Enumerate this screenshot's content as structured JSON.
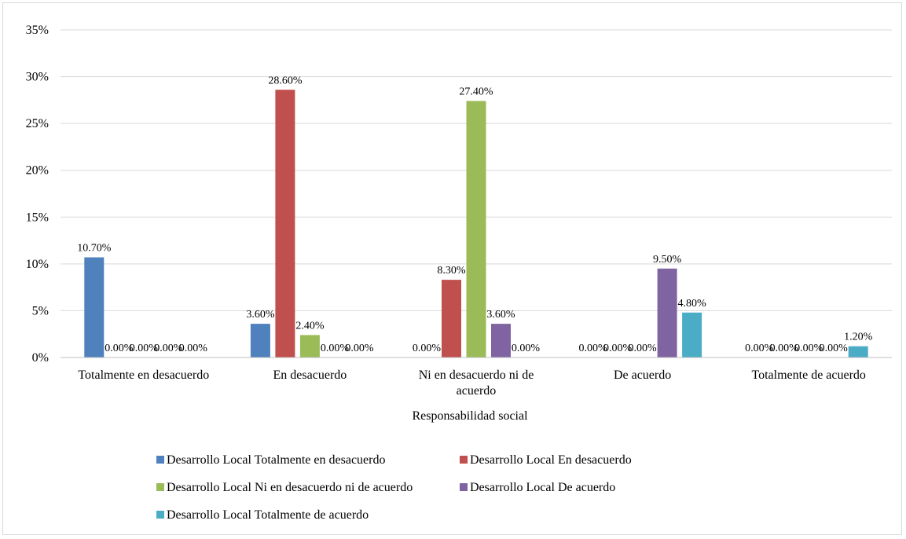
{
  "chart_data": {
    "type": "bar",
    "xlabel": "Responsabilidad social",
    "ylabel": "",
    "ylim": [
      0,
      35
    ],
    "yticks": [
      "0%",
      "5%",
      "10%",
      "15%",
      "20%",
      "25%",
      "30%",
      "35%"
    ],
    "grid": true,
    "legend_position": "bottom",
    "categories": [
      [
        "Totalmente en desacuerdo"
      ],
      [
        "En desacuerdo"
      ],
      [
        "Ni en desacuerdo ni de",
        "acuerdo"
      ],
      [
        "De acuerdo"
      ],
      [
        "Totalmente de acuerdo"
      ]
    ],
    "series": [
      {
        "name": "Desarrollo Local Totalmente en desacuerdo",
        "color": "#4f81bd",
        "values": [
          10.7,
          3.6,
          0.0,
          0.0,
          0.0
        ],
        "labels": [
          "10.70%",
          "3.60%",
          "0.00%",
          "0.00%",
          "0.00%"
        ]
      },
      {
        "name": "Desarrollo Local En desacuerdo",
        "color": "#c0504d",
        "values": [
          0.0,
          28.6,
          8.3,
          0.0,
          0.0
        ],
        "labels": [
          "0.00%",
          "28.60%",
          "8.30%",
          "0.00%",
          "0.00%"
        ]
      },
      {
        "name": "Desarrollo Local Ni en desacuerdo ni de acuerdo",
        "color": "#9bbb59",
        "values": [
          0.0,
          2.4,
          27.4,
          0.0,
          0.0
        ],
        "labels": [
          "0.00%",
          "2.40%",
          "27.40%",
          "0.00%",
          "0.00%"
        ]
      },
      {
        "name": "Desarrollo Local De acuerdo",
        "color": "#8064a2",
        "values": [
          0.0,
          0.0,
          3.6,
          9.5,
          0.0
        ],
        "labels": [
          "0.00%",
          "0.00%",
          "3.60%",
          "9.50%",
          "0.00%"
        ]
      },
      {
        "name": "Desarrollo Local Totalmente de acuerdo",
        "color": "#4bacc6",
        "values": [
          0.0,
          0.0,
          0.0,
          4.8,
          1.2
        ],
        "labels": [
          "0.00%",
          "0.00%",
          "0.00%",
          "4.80%",
          "1.20%"
        ]
      }
    ]
  }
}
